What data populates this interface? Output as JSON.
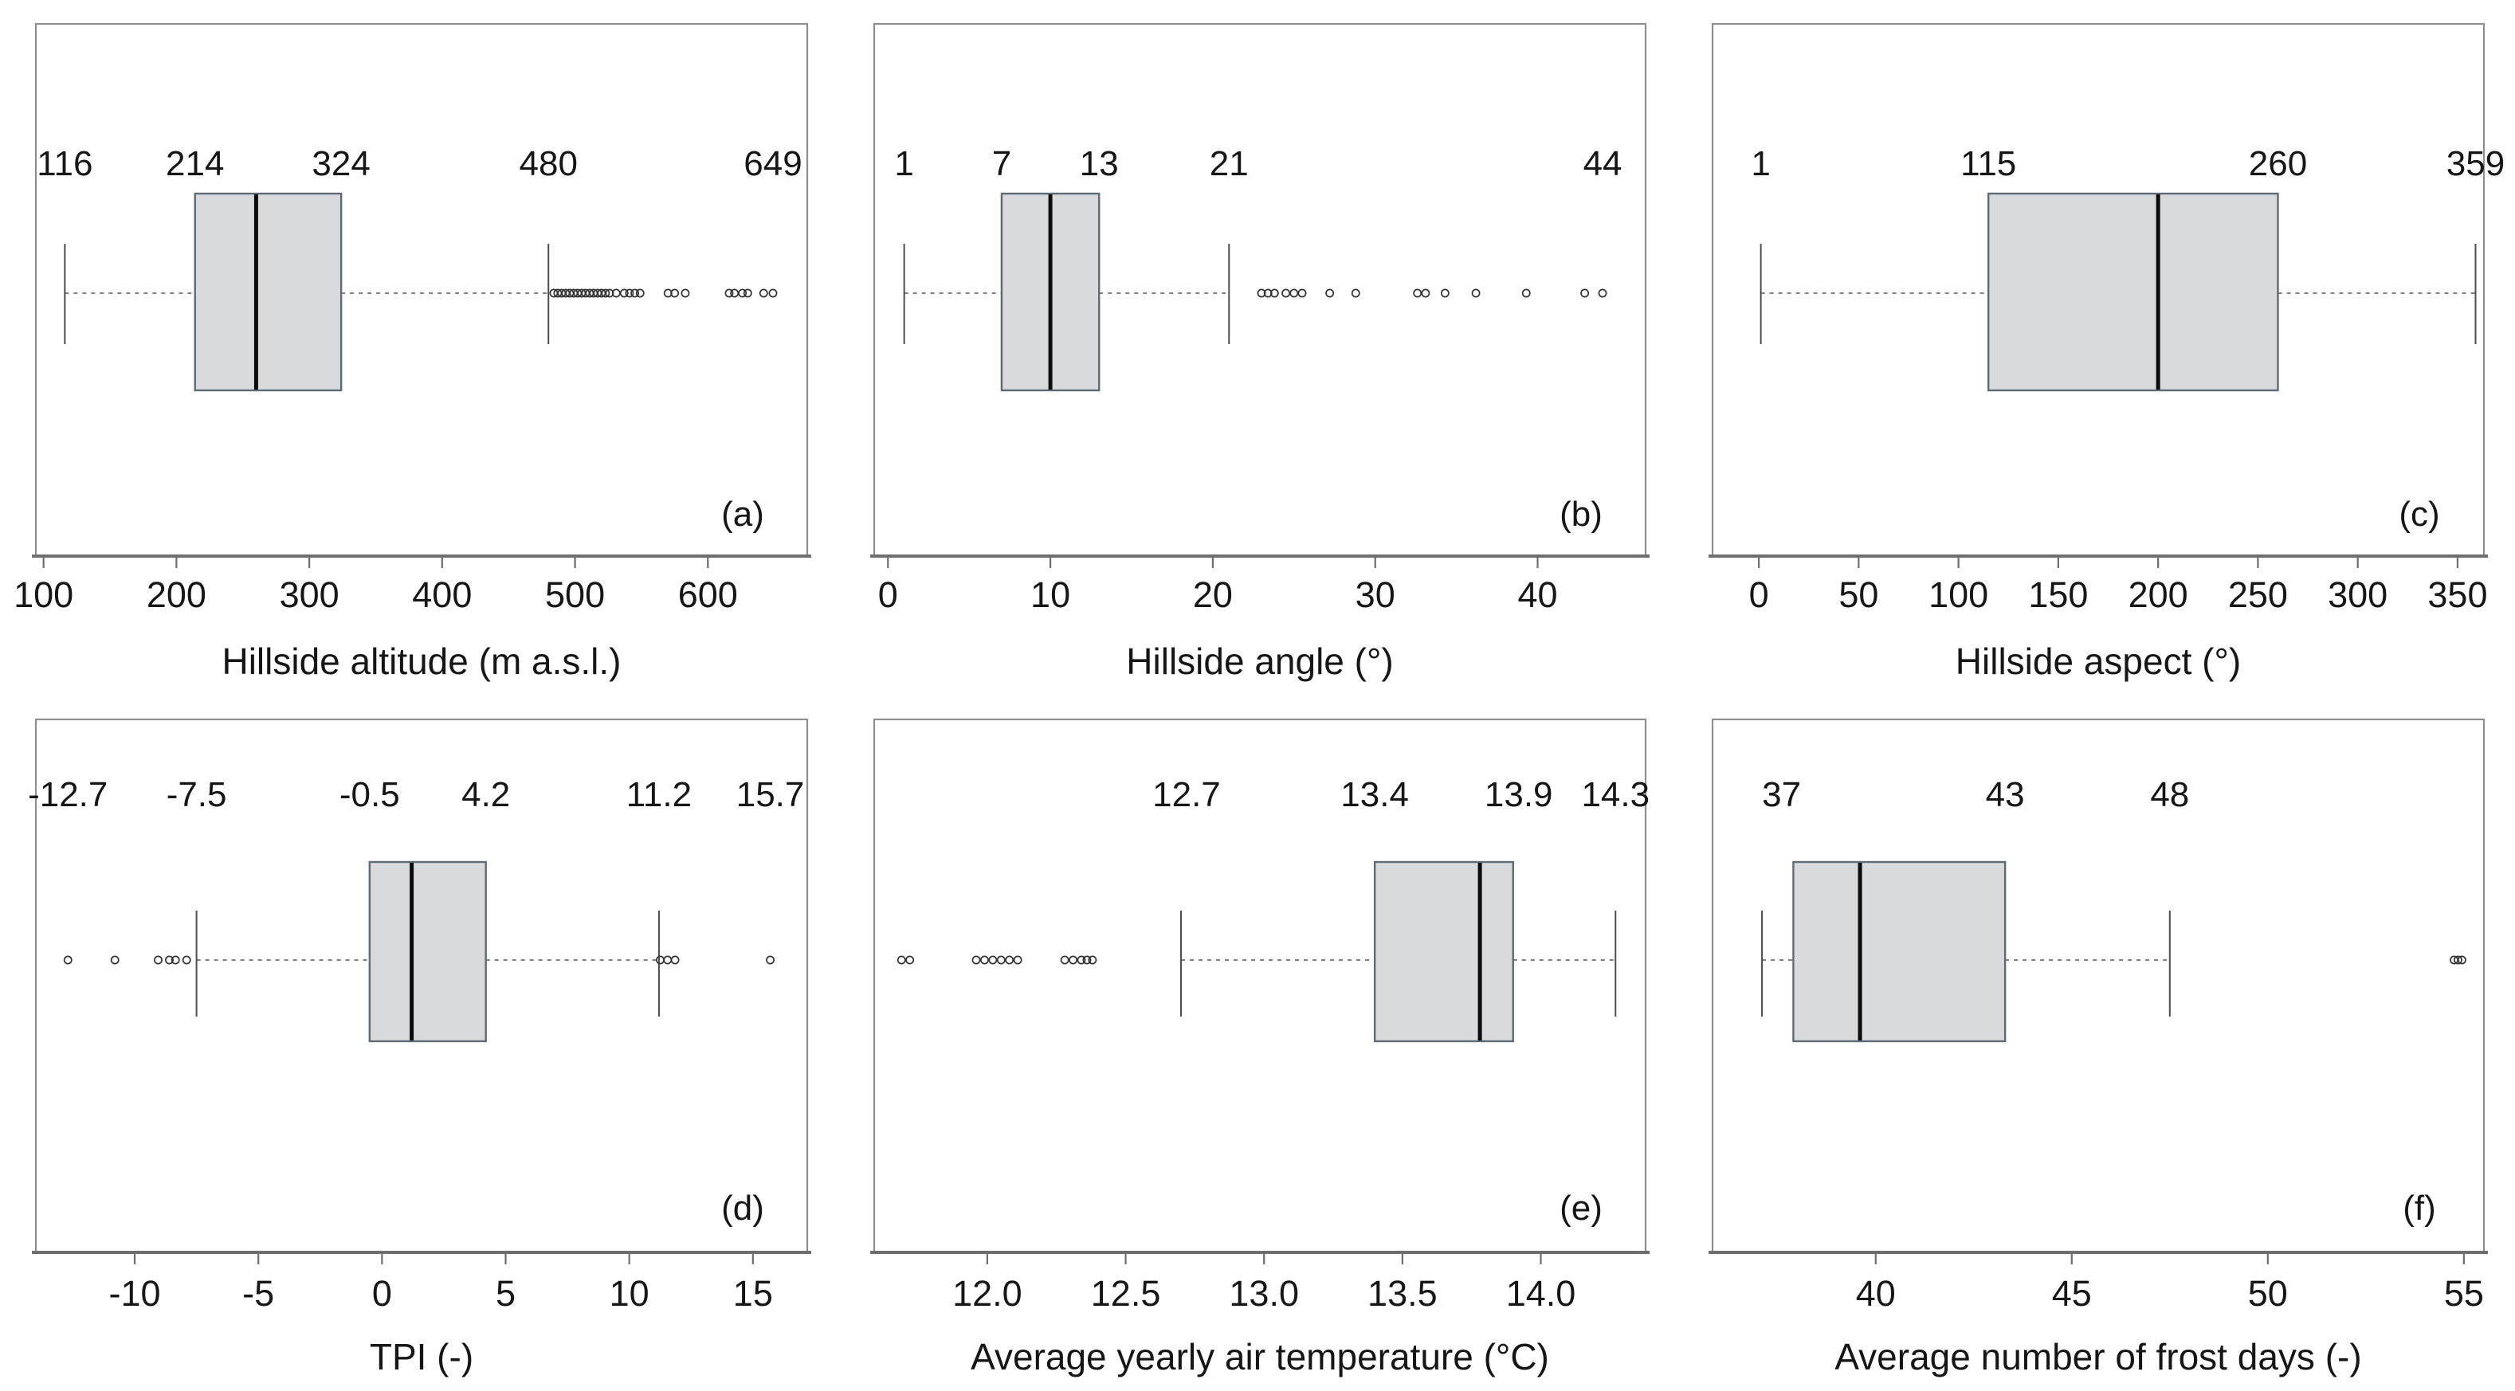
{
  "figure_title": "",
  "style": {
    "background": "#ffffff",
    "panel_bg": "#ffffff",
    "border_color": "#8f8f8f",
    "axis_color": "#6e6e6e",
    "box_fill": "#d8dadb",
    "box_stroke": "#5c6b75",
    "median_color": "#0c0c0c",
    "whisker_color": "#4d4d4d",
    "dash_color": "#6e6e6e",
    "outlier_color": "#333333",
    "text_color": "#161616"
  },
  "chart_data": {
    "type": "boxplot-grid",
    "orientation": "horizontal",
    "rows": 2,
    "cols": 3,
    "panels": [
      {
        "id": "a",
        "letter": "(a)",
        "xlabel": "Hillside altitude (m a.s.l.)",
        "xlim": [
          96,
          673
        ],
        "ticks": [
          100,
          200,
          300,
          400,
          500,
          600
        ],
        "tick_labels": [
          "100",
          "200",
          "300",
          "400",
          "500",
          "600"
        ],
        "box": {
          "whisker_low": 116,
          "q1": 214,
          "median": 260,
          "q3": 324,
          "whisker_high": 480
        },
        "outliers": [
          484,
          487,
          490,
          493,
          496,
          499,
          502,
          505,
          508,
          511,
          514,
          517,
          520,
          523,
          526,
          531,
          537,
          541,
          545,
          549,
          570,
          575,
          583,
          616,
          620,
          626,
          630,
          642,
          649
        ],
        "labels": [
          {
            "v": 116,
            "t": "116"
          },
          {
            "v": 214,
            "t": "214"
          },
          {
            "v": 324,
            "t": "324"
          },
          {
            "v": 480,
            "t": "480"
          },
          {
            "v": 649,
            "t": "649"
          }
        ]
      },
      {
        "id": "b",
        "letter": "(b)",
        "xlabel": "Hillside angle (°)",
        "xlim": [
          -0.7,
          46.5
        ],
        "ticks": [
          0,
          10,
          20,
          30,
          40
        ],
        "tick_labels": [
          "0",
          "10",
          "20",
          "30",
          "40"
        ],
        "box": {
          "whisker_low": 1,
          "q1": 7,
          "median": 10,
          "q3": 13,
          "whisker_high": 21
        },
        "outliers": [
          23.0,
          23.4,
          23.8,
          24.5,
          25.0,
          25.5,
          27.2,
          28.8,
          32.6,
          33.1,
          34.3,
          36.2,
          39.3,
          42.9,
          44.0
        ],
        "labels": [
          {
            "v": 1,
            "t": "1"
          },
          {
            "v": 7,
            "t": "7"
          },
          {
            "v": 13,
            "t": "13"
          },
          {
            "v": 21,
            "t": "21"
          },
          {
            "v": 44,
            "t": "44"
          }
        ]
      },
      {
        "id": "c",
        "letter": "(c)",
        "xlabel": "Hillside aspect (°)",
        "xlim": [
          -22,
          362
        ],
        "ticks": [
          0,
          50,
          100,
          150,
          200,
          250,
          300,
          350
        ],
        "tick_labels": [
          "0",
          "50",
          "100",
          "150",
          "200",
          "250",
          "300",
          "350"
        ],
        "box": {
          "whisker_low": 1,
          "q1": 115,
          "median": 200,
          "q3": 260,
          "whisker_high": 359
        },
        "outliers": [],
        "labels": [
          {
            "v": 1,
            "t": "1"
          },
          {
            "v": 115,
            "t": "115"
          },
          {
            "v": 260,
            "t": "260"
          },
          {
            "v": 359,
            "t": "359"
          }
        ]
      },
      {
        "id": "d",
        "letter": "(d)",
        "xlabel": "TPI (-)",
        "xlim": [
          -13.9,
          17.1
        ],
        "ticks": [
          -10,
          -5,
          0,
          5,
          10,
          15
        ],
        "tick_labels": [
          "-10",
          "-5",
          "0",
          "5",
          "10",
          "15"
        ],
        "box": {
          "whisker_low": -7.5,
          "q1": -0.5,
          "median": 1.2,
          "q3": 4.2,
          "whisker_high": 11.2
        },
        "outliers": [
          -12.7,
          -10.8,
          -9.05,
          -8.6,
          -8.35,
          -7.9,
          11.25,
          11.55,
          11.85,
          15.7
        ],
        "labels": [
          {
            "v": -12.7,
            "t": "-12.7"
          },
          {
            "v": -7.5,
            "t": "-7.5"
          },
          {
            "v": -0.5,
            "t": "-0.5"
          },
          {
            "v": 4.2,
            "t": "4.2"
          },
          {
            "v": 11.2,
            "t": "11.2"
          },
          {
            "v": 15.7,
            "t": "15.7"
          }
        ]
      },
      {
        "id": "e",
        "letter": "(e)",
        "xlabel": "Average yearly air temperature (°C)",
        "xlim": [
          11.6,
          14.37
        ],
        "ticks": [
          12.0,
          12.5,
          13.0,
          13.5,
          14.0
        ],
        "tick_labels": [
          "12.0",
          "12.5",
          "13.0",
          "13.5",
          "14.0"
        ],
        "box": {
          "whisker_low": 12.7,
          "q1": 13.4,
          "median": 13.78,
          "q3": 13.9,
          "whisker_high": 14.27
        },
        "outliers": [
          11.69,
          11.72,
          11.96,
          11.99,
          12.02,
          12.05,
          12.08,
          12.11,
          12.28,
          12.31,
          12.34,
          12.36,
          12.38
        ],
        "labels": [
          {
            "v": 12.72,
            "t": "12.7"
          },
          {
            "v": 13.4,
            "t": "13.4"
          },
          {
            "v": 13.92,
            "t": "13.9"
          },
          {
            "v": 14.27,
            "t": "14.3"
          }
        ]
      },
      {
        "id": "f",
        "letter": "(f)",
        "xlabel": "Average number of frost days (-)",
        "xlim": [
          35.9,
          55.45
        ],
        "ticks": [
          40,
          45,
          50,
          55
        ],
        "tick_labels": [
          "40",
          "45",
          "50",
          "55"
        ],
        "box": {
          "whisker_low": 37.1,
          "q1": 37.9,
          "median": 39.6,
          "q3": 43.3,
          "whisker_high": 47.5
        },
        "outliers": [
          54.75,
          54.85,
          54.95
        ],
        "labels": [
          {
            "v": 37.6,
            "t": "37"
          },
          {
            "v": 43.3,
            "t": "43"
          },
          {
            "v": 47.5,
            "t": "48"
          }
        ]
      }
    ]
  }
}
